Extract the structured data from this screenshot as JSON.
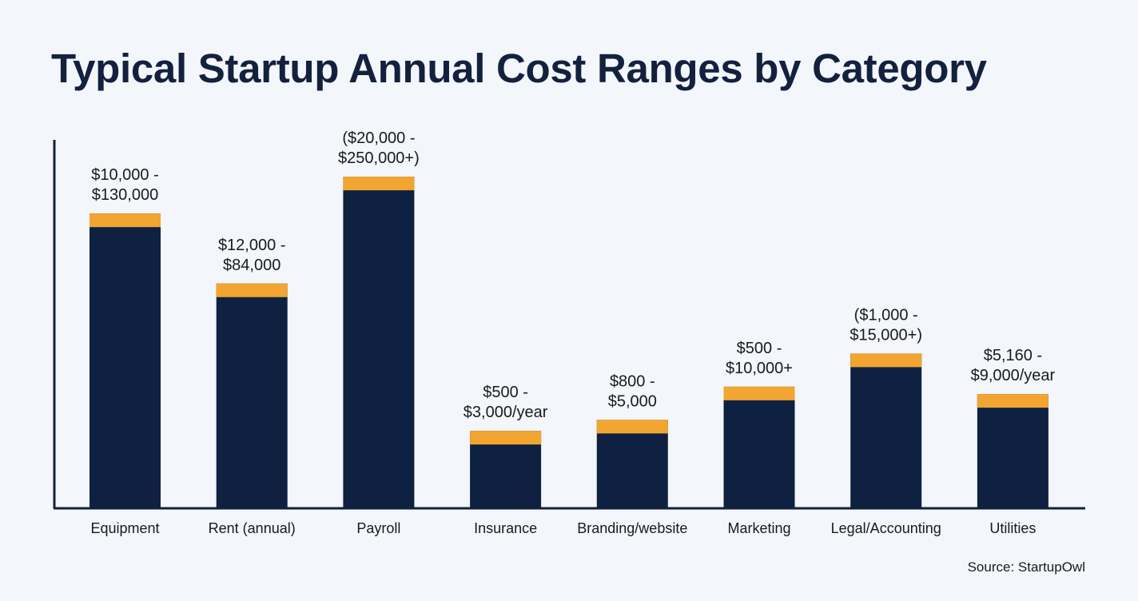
{
  "chart_data": {
    "type": "bar",
    "title": "Typical Startup Annual Cost Ranges by Category",
    "xlabel": "",
    "ylabel": "",
    "y_axis_ticks": "none",
    "grid": false,
    "stacked_cap": true,
    "categories": [
      "Equipment",
      "Rent (annual)",
      "Payroll",
      "Insurance",
      "Branding/website",
      "Marketing",
      "Legal/Accounting",
      "Utilities"
    ],
    "relative_heights": [
      0.8,
      0.61,
      0.9,
      0.21,
      0.24,
      0.33,
      0.42,
      0.31
    ],
    "data_labels": [
      [
        "$10,000 -",
        "$130,000"
      ],
      [
        "$12,000 -",
        "$84,000"
      ],
      [
        "($20,000 -",
        "$250,000+)"
      ],
      [
        "$500 -",
        "$3,000/year"
      ],
      [
        "$800 -",
        "$5,000"
      ],
      [
        "$500 -",
        "$10,000+"
      ],
      [
        "($1,000 -",
        "$15,000+)"
      ],
      [
        "$5,160 -",
        "$9,000/year"
      ]
    ],
    "colors": {
      "bar": "#0f2141",
      "cap": "#f2a531",
      "axis": "#13213f",
      "text": "#1a1a1a"
    }
  },
  "source": "Source: StartupOwl"
}
